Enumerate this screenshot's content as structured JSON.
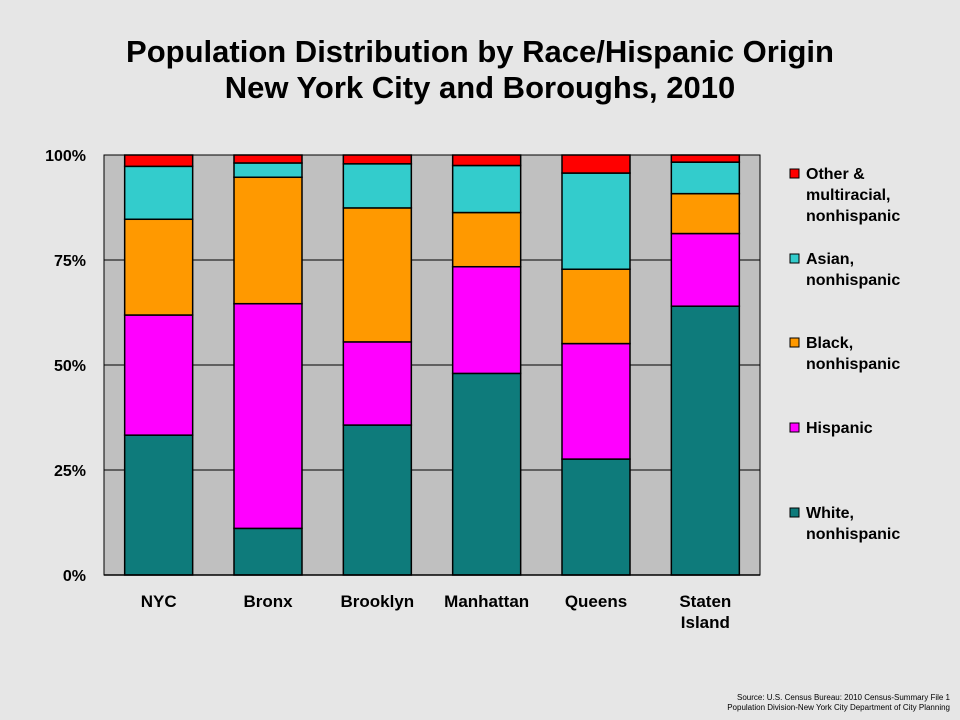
{
  "title": {
    "line1": "Population Distribution by Race/Hispanic Origin",
    "line2": "New York City and Boroughs, 2010"
  },
  "source": {
    "line1": "Source: U.S. Census Bureau: 2010 Census-Summary File 1",
    "line2": "Population Division-New York City Department of City Planning"
  },
  "colors": {
    "plot_background": "#c0c0c0",
    "page_background": "#e6e6e6"
  },
  "chart_data": {
    "type": "bar",
    "stacked": true,
    "percent": true,
    "categories": [
      [
        "NYC"
      ],
      [
        "Bronx"
      ],
      [
        "Brooklyn"
      ],
      [
        "Manhattan"
      ],
      [
        "Queens"
      ],
      [
        "Staten",
        "Island"
      ]
    ],
    "ylim": [
      0,
      100
    ],
    "yticks": [
      {
        "value": 0,
        "label": "0%"
      },
      {
        "value": 25,
        "label": "25%"
      },
      {
        "value": 50,
        "label": "50%"
      },
      {
        "value": 75,
        "label": "75%"
      },
      {
        "value": 100,
        "label": "100%"
      }
    ],
    "grid": true,
    "legend_position": "right",
    "series": [
      {
        "name": [
          "White,",
          "nonhispanic"
        ],
        "color": "#0e7b7b",
        "values": [
          33.3,
          11.1,
          35.7,
          48.0,
          27.6,
          64.0
        ]
      },
      {
        "name": [
          "Hispanic"
        ],
        "color": "#ff00ff",
        "values": [
          28.6,
          53.5,
          19.8,
          25.4,
          27.5,
          17.3
        ]
      },
      {
        "name": [
          "Black,",
          "nonhispanic"
        ],
        "color": "#ff9900",
        "values": [
          22.8,
          30.1,
          31.9,
          12.9,
          17.7,
          9.5
        ]
      },
      {
        "name": [
          "Asian,",
          "nonhispanic"
        ],
        "color": "#33cccc",
        "values": [
          12.6,
          3.4,
          10.5,
          11.2,
          22.9,
          7.5
        ]
      },
      {
        "name": [
          "Other &",
          "multiracial,",
          "nonhispanic"
        ],
        "color": "#ff0000",
        "values": [
          2.7,
          1.9,
          2.1,
          2.5,
          4.3,
          1.7
        ]
      }
    ]
  }
}
